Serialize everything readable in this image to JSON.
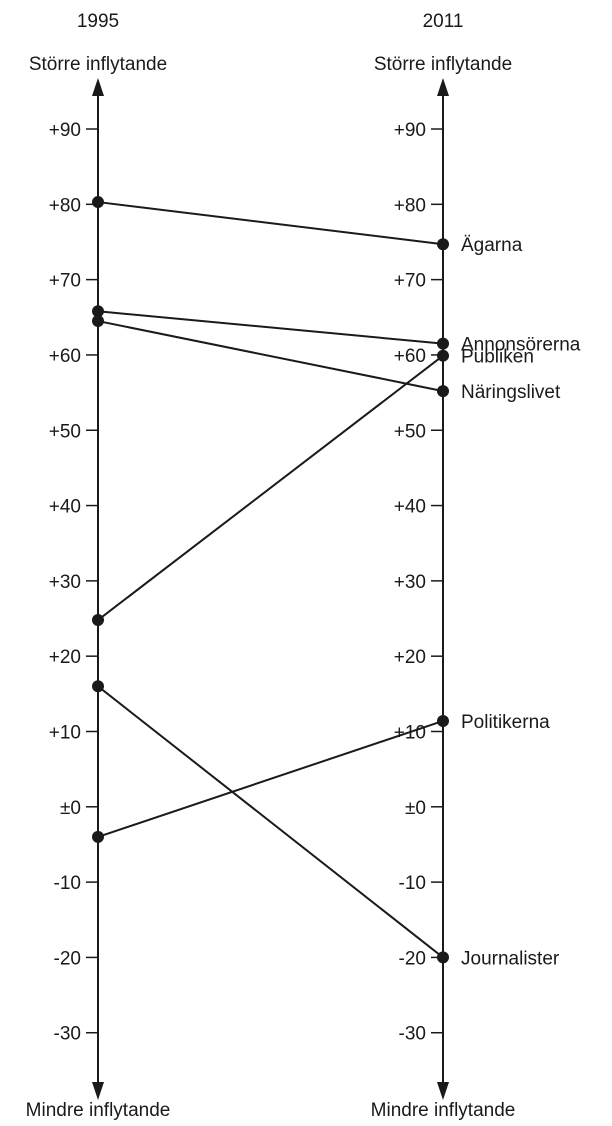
{
  "chart_data": {
    "type": "line",
    "categories": [
      "1995",
      "2011"
    ],
    "axis_top_label": "Större inflytande",
    "axis_bottom_label": "Mindre inflytande",
    "ylim": [
      -36,
      98
    ],
    "ticks": [
      90,
      80,
      70,
      60,
      50,
      40,
      30,
      20,
      10,
      0,
      -10,
      -20,
      -30
    ],
    "tick_labels": [
      "+90",
      "+80",
      "+70",
      "+60",
      "+50",
      "+40",
      "+30",
      "+20",
      "+10",
      "±0",
      "-10",
      "-20",
      "-30"
    ],
    "series": [
      {
        "name": "Ägarna",
        "values": [
          80.3,
          74.7
        ]
      },
      {
        "name": "Annonsörerna",
        "values": [
          65.8,
          61.5
        ]
      },
      {
        "name": "Publiken",
        "values": [
          24.8,
          59.9
        ]
      },
      {
        "name": "Näringslivet",
        "values": [
          64.5,
          55.2
        ]
      },
      {
        "name": "Politikerna",
        "values": [
          -4,
          11.4
        ]
      },
      {
        "name": "Journalister",
        "values": [
          16,
          -20
        ]
      }
    ],
    "colors": {
      "line": "#1a1a1a",
      "marker": "#1a1a1a"
    }
  }
}
